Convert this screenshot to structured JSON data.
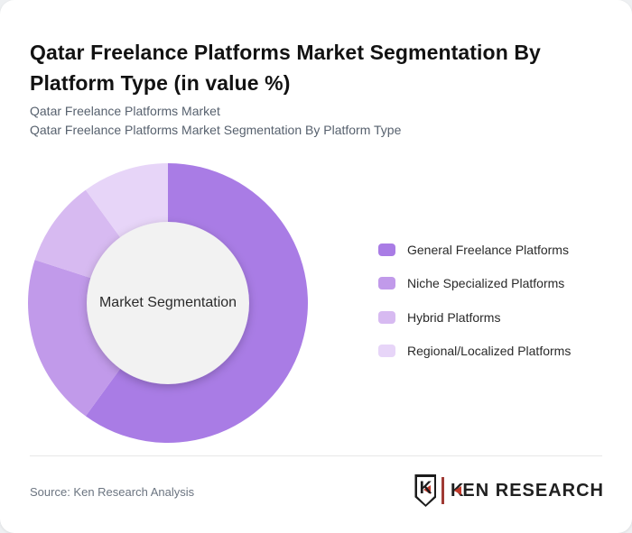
{
  "header": {
    "title": "Qatar Freelance Platforms Market Segmentation By\nPlatform Type (in value %)",
    "subtitle_line1": "Qatar Freelance Platforms Market",
    "subtitle_line2": "Qatar Freelance Platforms Market Segmentation By Platform Type"
  },
  "chart_data": {
    "type": "pie",
    "subtype": "donut",
    "title": "Qatar Freelance Platforms Market Segmentation By Platform Type (in value %)",
    "center_label": "Market Segmentation",
    "unit": "percent of value",
    "start_angle_deg": 0,
    "direction": "clockwise",
    "legend_position": "right",
    "hole_color": "#f2f2f2",
    "categories": [
      "General Freelance Platforms",
      "Niche Specialized Platforms",
      "Hybrid Platforms",
      "Regional/Localized Platforms"
    ],
    "values": [
      60,
      20,
      10,
      10
    ],
    "colors": [
      "#a97ce5",
      "#c19aea",
      "#d7baf1",
      "#e7d5f8"
    ]
  },
  "footer": {
    "source_text": "Source: Ken Research Analysis",
    "logo": {
      "badge_letter": "K",
      "brand_k": "K",
      "brand_rest": "EN RESEARCH",
      "accent_color": "#c0392b",
      "text_color": "#202020"
    }
  }
}
